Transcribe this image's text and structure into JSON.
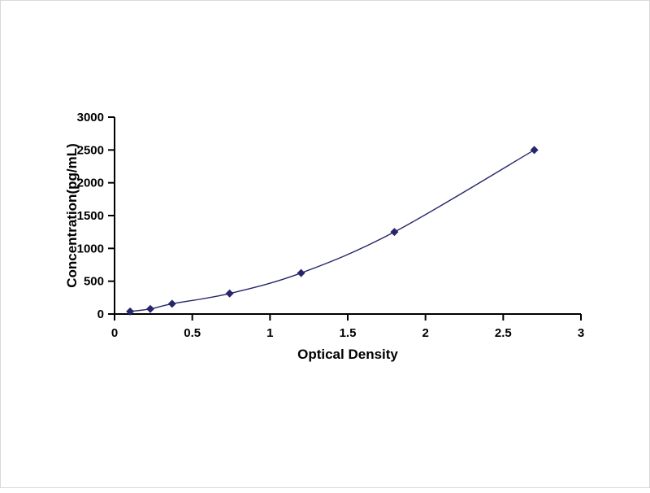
{
  "chart_data": {
    "type": "line",
    "title": "",
    "xlabel": "Optical Density",
    "ylabel": "Concentration(pg/mL)",
    "x": [
      0.1,
      0.23,
      0.37,
      0.74,
      1.2,
      1.8,
      2.7
    ],
    "y": [
      39,
      78,
      156,
      312.5,
      625,
      1250,
      2500
    ],
    "xlim": [
      0,
      3
    ],
    "ylim": [
      0,
      3000
    ],
    "x_ticks": [
      0,
      0.5,
      1,
      1.5,
      2,
      2.5,
      3
    ],
    "x_tick_labels": [
      "0",
      "0.5",
      "1",
      "1.5",
      "2",
      "2.5",
      "3"
    ],
    "y_ticks": [
      0,
      500,
      1000,
      1500,
      2000,
      2500,
      3000
    ],
    "y_tick_labels": [
      "0",
      "500",
      "1000",
      "1500",
      "2000",
      "2500",
      "3000"
    ],
    "grid": false,
    "legend_position": "none",
    "marker": "diamond",
    "line_color": "#26266B",
    "marker_color": "#26266B",
    "axis_color": "#000000",
    "background_color": "#FFFFFF"
  }
}
